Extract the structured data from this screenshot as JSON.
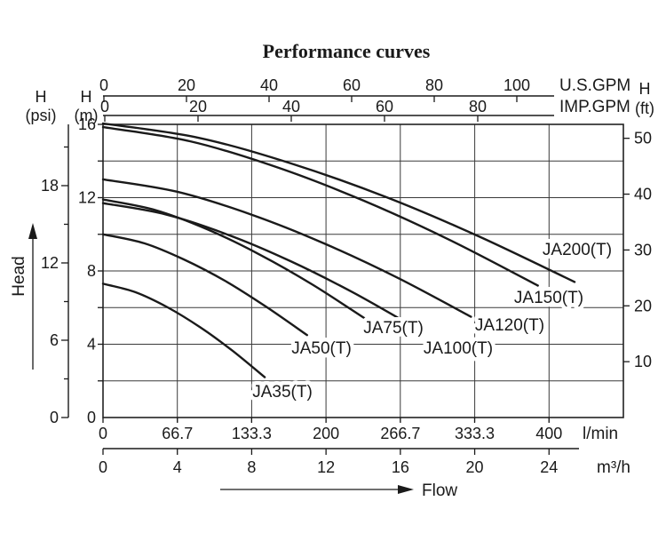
{
  "colors": {
    "ink": "#1a1a1a",
    "grid": "#3a3a3a",
    "background": "#ffffff"
  },
  "chart_data": {
    "type": "line",
    "title": "Performance curves",
    "grid": true,
    "legend": "inline-curve-labels",
    "xlim_l_min": [
      0,
      466.7
    ],
    "ylim_m": [
      0,
      16
    ],
    "flow_axes": {
      "us_gpm": {
        "unit": "U.S.GPM",
        "ticks": [
          0,
          20,
          40,
          60,
          80,
          100
        ]
      },
      "imp_gpm": {
        "unit": "IMP.GPM",
        "ticks": [
          0,
          20,
          40,
          60,
          80
        ]
      },
      "l_min": {
        "unit": "l/min",
        "ticks": [
          "0",
          "66.7",
          "133.3",
          "200",
          "266.7",
          "333.3",
          "400"
        ]
      },
      "m3_h": {
        "unit": "m³/h",
        "ticks": [
          0,
          4,
          8,
          12,
          16,
          20,
          24
        ]
      }
    },
    "head_axes": {
      "psi": {
        "header_symbol": "H",
        "header_unit": "(psi)",
        "ticks": [
          0,
          6,
          12,
          18
        ],
        "minor_ticks": [
          3,
          9,
          15,
          21
        ]
      },
      "m": {
        "header_symbol": "H",
        "header_unit": "(m)",
        "ticks": [
          0,
          4,
          8,
          12,
          16
        ]
      },
      "ft": {
        "header_symbol": "H",
        "header_unit": "(ft)",
        "ticks": [
          10,
          20,
          30,
          40,
          50
        ]
      }
    },
    "axis_arrows": {
      "head_label": "Head",
      "flow_label": "Flow"
    },
    "series": [
      {
        "name": "JA35(T)",
        "points": [
          [
            0,
            7.3
          ],
          [
            29,
            6.84
          ],
          [
            58,
            6.01
          ],
          [
            87,
            4.93
          ],
          [
            116,
            3.65
          ],
          [
            145,
            2.2
          ]
        ]
      },
      {
        "name": "JA50(T)",
        "points": [
          [
            0,
            10.0
          ],
          [
            37,
            9.51
          ],
          [
            73,
            8.61
          ],
          [
            110,
            7.44
          ],
          [
            146,
            6.06
          ],
          [
            183,
            4.5
          ]
        ]
      },
      {
        "name": "JA75(T)",
        "points": [
          [
            0,
            11.9
          ],
          [
            47,
            11.32
          ],
          [
            94,
            10.26
          ],
          [
            141,
            8.88
          ],
          [
            188,
            7.25
          ],
          [
            235,
            5.4
          ]
        ]
      },
      {
        "name": "JA100(T)",
        "points": [
          [
            0,
            11.7
          ],
          [
            56,
            11.09
          ],
          [
            112,
            9.98
          ],
          [
            168,
            8.54
          ],
          [
            224,
            6.83
          ],
          [
            280,
            4.9
          ]
        ]
      },
      {
        "name": "JA120(T)",
        "points": [
          [
            0,
            13.0
          ],
          [
            66,
            12.33
          ],
          [
            132,
            11.1
          ],
          [
            198,
            9.51
          ],
          [
            264,
            7.63
          ],
          [
            330,
            5.5
          ]
        ]
      },
      {
        "name": "JA150(T)",
        "points": [
          [
            0,
            15.85
          ],
          [
            78,
            15.08
          ],
          [
            156,
            13.66
          ],
          [
            234,
            11.83
          ],
          [
            312,
            9.66
          ],
          [
            390,
            7.2
          ]
        ]
      },
      {
        "name": "JA200(T)",
        "points": [
          [
            0,
            16.05
          ],
          [
            85,
            15.28
          ],
          [
            169,
            13.86
          ],
          [
            254,
            12.03
          ],
          [
            338,
            9.86
          ],
          [
            423,
            7.4
          ]
        ]
      }
    ]
  }
}
